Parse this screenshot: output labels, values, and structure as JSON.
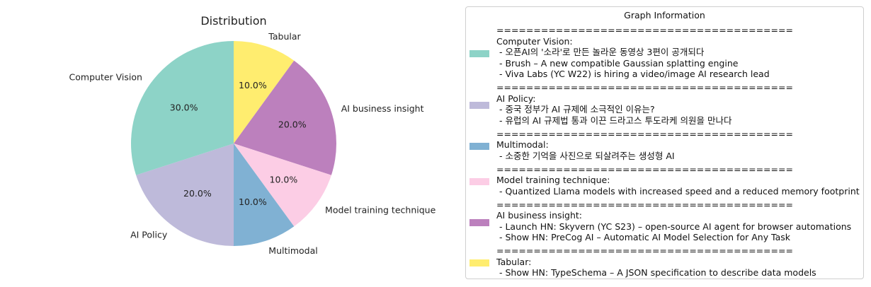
{
  "chart_data": {
    "type": "pie",
    "title": "Distribution",
    "start_angle": 90,
    "direction": "clockwise",
    "slices": [
      {
        "label": "Tabular",
        "value": 10.0,
        "pct_label": "10.0%",
        "color": "#ffed6f"
      },
      {
        "label": "AI business insight",
        "value": 20.0,
        "pct_label": "20.0%",
        "color": "#bc80bd"
      },
      {
        "label": "Model training technique",
        "value": 10.0,
        "pct_label": "10.0%",
        "color": "#fccde5"
      },
      {
        "label": "Multimodal",
        "value": 10.0,
        "pct_label": "10.0%",
        "color": "#80b1d3"
      },
      {
        "label": "AI Policy",
        "value": 20.0,
        "pct_label": "20.0%",
        "color": "#bebada"
      },
      {
        "label": "Computer Vision",
        "value": 30.0,
        "pct_label": "30.0%",
        "color": "#8dd3c7"
      }
    ]
  },
  "legend": {
    "title": "Graph Information",
    "separator": "========================================",
    "groups": [
      {
        "heading": "Computer Vision:",
        "color": "#8dd3c7",
        "items": [
          " - 오픈AI의 '소라'로 만든 놀라운 동영상 3편이 공개되다",
          " - Brush – A new compatible Gaussian splatting engine",
          " - Viva Labs (YC W22) is hiring a video/image AI research lead"
        ]
      },
      {
        "heading": "AI Policy:",
        "color": "#bebada",
        "items": [
          " - 중국 정부가 AI 규제에 소극적인 이유는?",
          " - 유럽의 AI 규제법 통과 이끈 드라고스 투도라케 의원을 만나다"
        ]
      },
      {
        "heading": "Multimodal:",
        "color": "#80b1d3",
        "items": [
          " - 소중한 기억을 사진으로 되살려주는 생성형 AI"
        ]
      },
      {
        "heading": "Model training technique:",
        "color": "#fccde5",
        "items": [
          " - Quantized Llama models with increased speed and a reduced memory footprint"
        ]
      },
      {
        "heading": "AI business insight:",
        "color": "#bc80bd",
        "items": [
          " - Launch HN: Skyvern (YC S23) – open-source AI agent for browser automations",
          " - Show HN: PreCog AI – Automatic AI Model Selection for Any Task"
        ]
      },
      {
        "heading": "Tabular:",
        "color": "#ffed6f",
        "items": [
          " - Show HN: TypeSchema – A JSON specification to describe data models"
        ]
      }
    ]
  }
}
